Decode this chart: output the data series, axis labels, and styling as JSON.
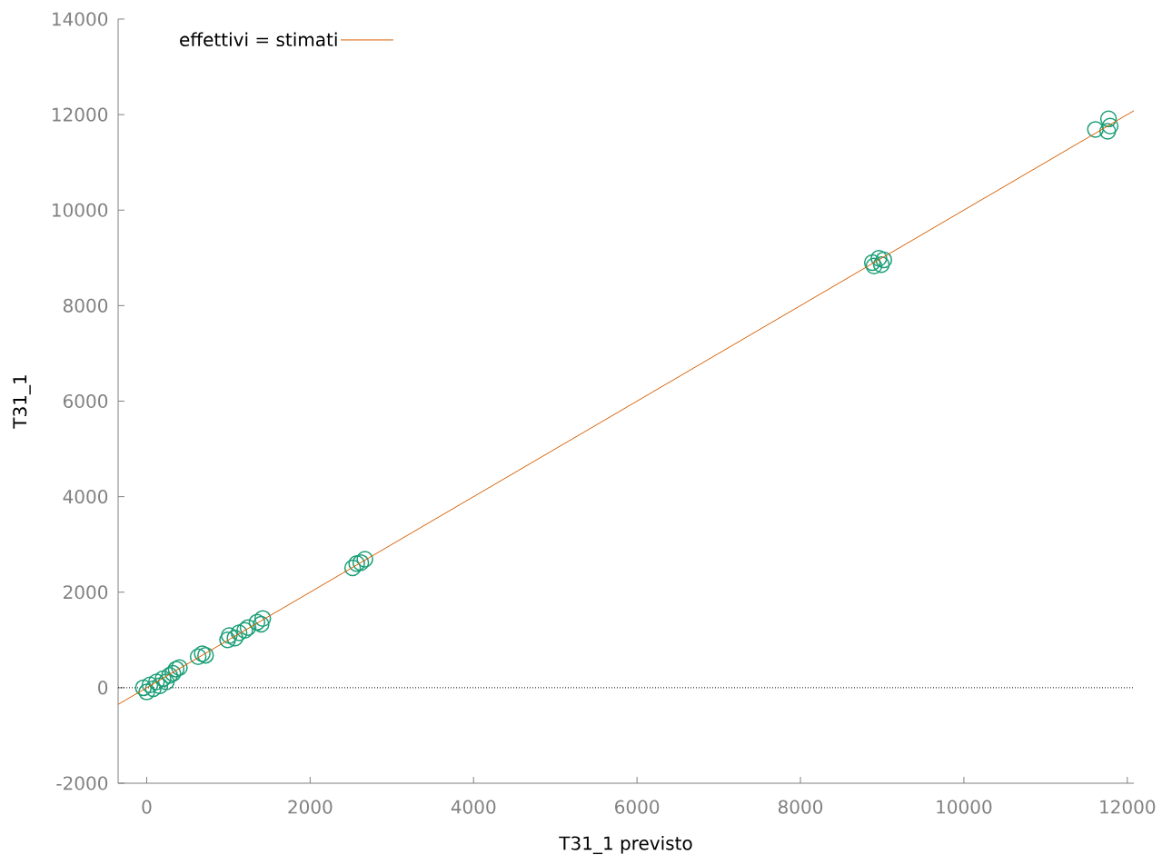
{
  "chart_data": {
    "type": "scatter",
    "xlabel": "T31_1 previsto",
    "ylabel": "T31_1",
    "xlim": [
      -350,
      12080
    ],
    "ylim": [
      -2000,
      14000
    ],
    "xticks": [
      0,
      2000,
      4000,
      6000,
      8000,
      10000,
      12000
    ],
    "yticks": [
      -2000,
      0,
      2000,
      4000,
      6000,
      8000,
      10000,
      12000,
      14000
    ],
    "legend": "top left",
    "series": [
      {
        "color": "#1b9e77",
        "marker": "circle",
        "x": [
          -40,
          0,
          40,
          80,
          120,
          160,
          200,
          240,
          280,
          320,
          360,
          400,
          630,
          680,
          720,
          990,
          1010,
          1080,
          1130,
          1200,
          1240,
          1350,
          1400,
          1420,
          2520,
          2570,
          2620,
          2670,
          8880,
          8960,
          9020,
          8900,
          8990,
          11610,
          11770,
          11760,
          11790
        ],
        "values": [
          0,
          -90,
          60,
          -20,
          120,
          40,
          190,
          120,
          260,
          300,
          390,
          420,
          650,
          710,
          680,
          1000,
          1090,
          1040,
          1150,
          1200,
          1260,
          1370,
          1330,
          1450,
          2510,
          2600,
          2620,
          2690,
          8900,
          8990,
          8960,
          8830,
          8860,
          11690,
          11910,
          11650,
          11760
        ]
      },
      {
        "type": "line",
        "name": "effettivi = stimati",
        "color": "#d95f02",
        "x": [
          -350,
          12080
        ],
        "values": [
          -350,
          12080
        ]
      }
    ],
    "ref_lines": [
      {
        "axis": "y",
        "value": 0,
        "color": "#000000",
        "line_style": "dotted"
      }
    ]
  }
}
